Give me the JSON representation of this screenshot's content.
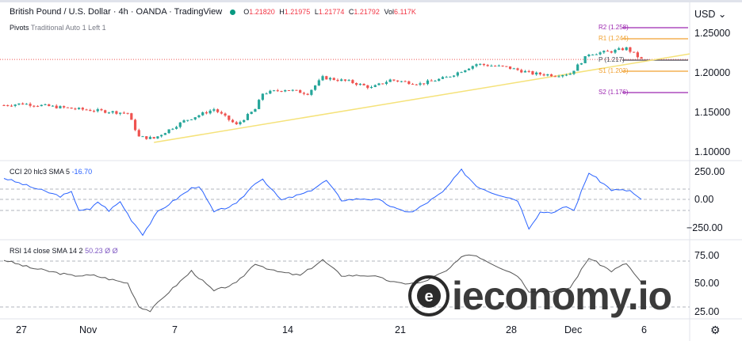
{
  "header": {
    "symbol": "British Pound / U.S. Dollar · 4h · OANDA · TradingView",
    "open_label": "O",
    "open": "1.21820",
    "high_label": "H",
    "high": "1.21975",
    "low_label": "L",
    "low": "1.21774",
    "close_label": "C",
    "close": "1.21792",
    "vol_label": "Vol",
    "vol": "6.117K",
    "pivots_name": "Pivots",
    "pivots_params": "Traditional Auto 1 Left 1"
  },
  "price_axis": {
    "currency": "USD",
    "ticks": [
      "1.25000",
      "1.20000",
      "1.15000",
      "1.10000"
    ]
  },
  "pivots": [
    {
      "label": "R2 (1.258)",
      "value": 1.258,
      "color": "#9c27b0"
    },
    {
      "label": "R1 (1.244)",
      "value": 1.244,
      "color": "#f0a030"
    },
    {
      "label": "P (1.217)",
      "value": 1.217,
      "color": "#434651"
    },
    {
      "label": "S1 (1.203)",
      "value": 1.203,
      "color": "#f0a030"
    },
    {
      "label": "S2 (1.176)",
      "value": 1.176,
      "color": "#9c27b0"
    }
  ],
  "cci": {
    "name": "CCI 20 hlc3 SMA 5",
    "value": "-16.70",
    "ticks": [
      "250.00",
      "0.00",
      "−250.00"
    ]
  },
  "rsi": {
    "name": "RSI 14 close SMA 14 2",
    "value": "50.23",
    "extra1": "Ø",
    "extra2": "Ø",
    "ticks": [
      "75.00",
      "50.00",
      "25.00"
    ]
  },
  "time_axis": [
    "27",
    "Nov",
    "7",
    "14",
    "21",
    "28",
    "Dec",
    "6"
  ],
  "watermark": "ieconomy.io",
  "colors": {
    "up": "#26a69a",
    "down": "#ef5350",
    "trend": "#f5e27a",
    "line": "#2962ff"
  },
  "chart_data": {
    "type": "candlestick",
    "bars": 171,
    "price_keypoints": [
      [
        0,
        1.16
      ],
      [
        5,
        1.162
      ],
      [
        20,
        1.155
      ],
      [
        33,
        1.15
      ],
      [
        36,
        1.12
      ],
      [
        40,
        1.118
      ],
      [
        48,
        1.14
      ],
      [
        56,
        1.155
      ],
      [
        62,
        1.135
      ],
      [
        67,
        1.155
      ],
      [
        69,
        1.175
      ],
      [
        75,
        1.18
      ],
      [
        81,
        1.175
      ],
      [
        85,
        1.195
      ],
      [
        92,
        1.19
      ],
      [
        98,
        1.182
      ],
      [
        103,
        1.192
      ],
      [
        111,
        1.187
      ],
      [
        118,
        1.195
      ],
      [
        126,
        1.212
      ],
      [
        134,
        1.208
      ],
      [
        141,
        1.2
      ],
      [
        147,
        1.198
      ],
      [
        151,
        1.2
      ],
      [
        156,
        1.225
      ],
      [
        162,
        1.228
      ],
      [
        166,
        1.232
      ],
      [
        168,
        1.225
      ],
      [
        170,
        1.218
      ]
    ],
    "cci_keypoints": [
      [
        0,
        190
      ],
      [
        7,
        113
      ],
      [
        15,
        28
      ],
      [
        18,
        63
      ],
      [
        20,
        -92
      ],
      [
        23,
        -92
      ],
      [
        25,
        -21
      ],
      [
        28,
        -99
      ],
      [
        31,
        -21
      ],
      [
        34,
        -183
      ],
      [
        37,
        -310
      ],
      [
        41,
        -113
      ],
      [
        50,
        99
      ],
      [
        52,
        120
      ],
      [
        56,
        -113
      ],
      [
        62,
        -42
      ],
      [
        67,
        148
      ],
      [
        69,
        183
      ],
      [
        72,
        63
      ],
      [
        74,
        -7
      ],
      [
        81,
        63
      ],
      [
        86,
        169
      ],
      [
        90,
        -7
      ],
      [
        96,
        7
      ],
      [
        100,
        -7
      ],
      [
        105,
        -92
      ],
      [
        109,
        -113
      ],
      [
        117,
        63
      ],
      [
        122,
        261
      ],
      [
        126,
        120
      ],
      [
        130,
        63
      ],
      [
        137,
        -7
      ],
      [
        140,
        -254
      ],
      [
        143,
        -113
      ],
      [
        147,
        -113
      ],
      [
        150,
        -63
      ],
      [
        152,
        -99
      ],
      [
        156,
        239
      ],
      [
        162,
        85
      ],
      [
        167,
        77
      ],
      [
        170,
        -7
      ]
    ],
    "rsi_keypoints": [
      [
        0,
        71
      ],
      [
        7,
        64
      ],
      [
        18,
        57
      ],
      [
        24,
        57
      ],
      [
        33,
        50
      ],
      [
        36,
        29
      ],
      [
        39,
        25
      ],
      [
        43,
        39
      ],
      [
        50,
        61
      ],
      [
        56,
        43
      ],
      [
        62,
        50
      ],
      [
        67,
        68
      ],
      [
        72,
        61
      ],
      [
        79,
        57
      ],
      [
        85,
        71
      ],
      [
        90,
        57
      ],
      [
        98,
        57
      ],
      [
        105,
        50
      ],
      [
        111,
        50
      ],
      [
        118,
        61
      ],
      [
        123,
        76
      ],
      [
        126,
        75
      ],
      [
        130,
        68
      ],
      [
        137,
        57
      ],
      [
        140,
        43
      ],
      [
        147,
        43
      ],
      [
        151,
        46
      ],
      [
        156,
        73
      ],
      [
        162,
        61
      ],
      [
        166,
        68
      ],
      [
        170,
        50
      ]
    ],
    "trendline": [
      [
        40,
        1.113
      ],
      [
        183,
        1.225
      ]
    ]
  }
}
